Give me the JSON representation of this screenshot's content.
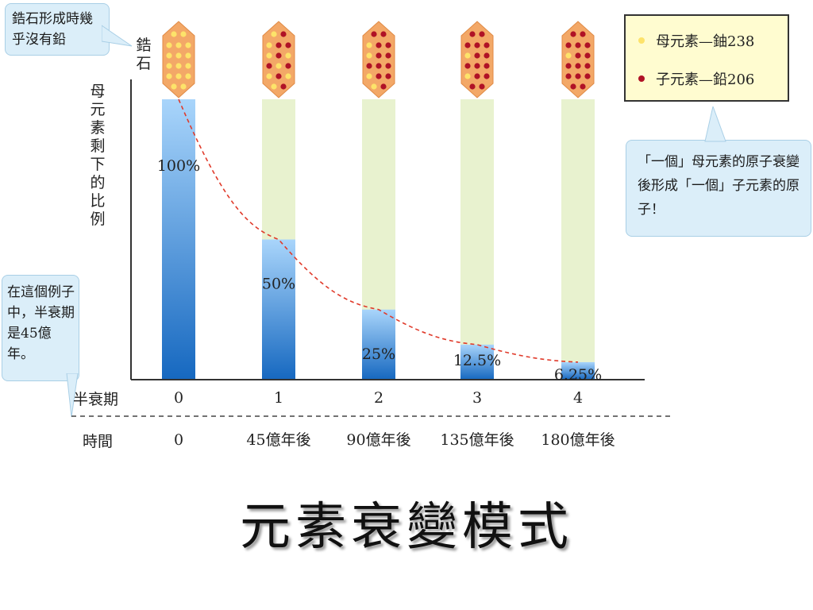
{
  "callouts": {
    "top_left": "鋯石形成時幾乎沒有鉛",
    "bottom_left": "在這個例子中，半衰期是45億年。",
    "right": "「一個」母元素的原子衰變後形成「一個」子元素的原子！"
  },
  "zircon_label": "鋯石",
  "legend": {
    "parent": "母元素—鈾238",
    "daughter": "子元素—鉛206",
    "parent_color": "#fde36a",
    "daughter_color": "#b01226"
  },
  "colors": {
    "bar_blue_top": "#a9d5fb",
    "bar_blue_bottom": "#1668c0",
    "bar_green": "#e8f2cf",
    "crystal_fill": "#f3a867",
    "curve": "#e03a2a"
  },
  "row_labels": {
    "half_life": "半衰期",
    "time": "時間"
  },
  "chart_data": {
    "type": "bar",
    "ylabel": "母元素剩下的比例",
    "categories": [
      "0",
      "1",
      "2",
      "3",
      "4"
    ],
    "times": [
      "0",
      "45億年後",
      "90億年後",
      "135億年後",
      "180億年後"
    ],
    "values": [
      100,
      50,
      25,
      12.5,
      6.25
    ],
    "value_labels": [
      "100%",
      "50%",
      "25%",
      "12.5%",
      "6.25%"
    ],
    "ylim": [
      0,
      100
    ],
    "daughter_counts": [
      0,
      8,
      12,
      14,
      15
    ],
    "trend_line": "dashed"
  },
  "title": "元素衰變模式"
}
